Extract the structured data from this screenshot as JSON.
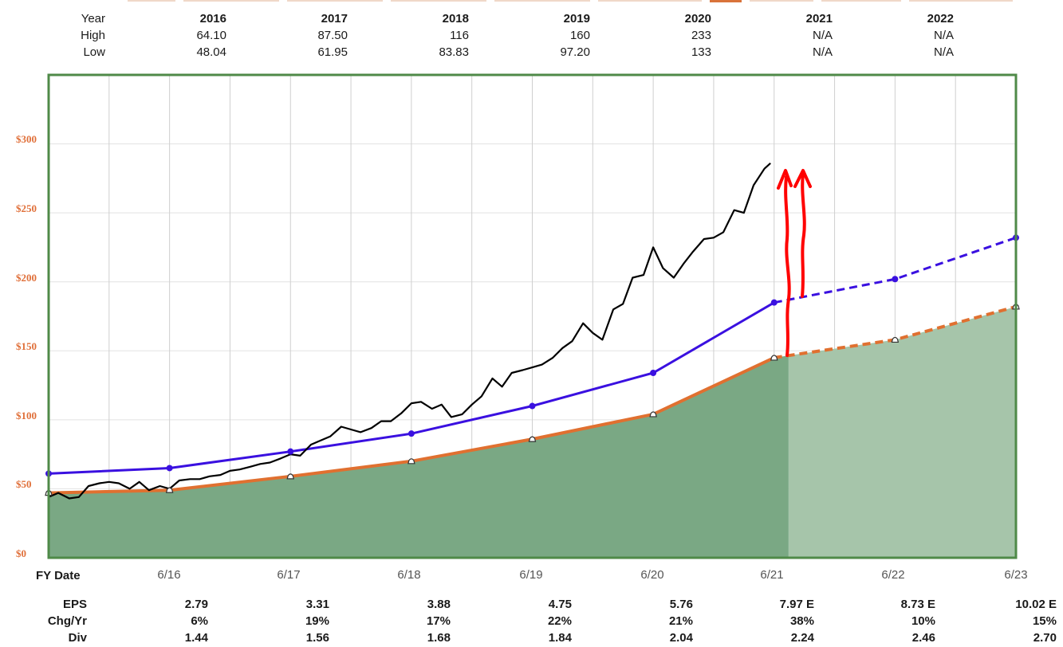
{
  "summary_table": {
    "headers": [
      "Year",
      "2016",
      "2017",
      "2018",
      "2019",
      "2020",
      "2021",
      "2022"
    ],
    "high": [
      "High",
      "64.10",
      "87.50",
      "116",
      "160",
      "233",
      "N/A",
      "N/A"
    ],
    "low": [
      "Low",
      "48.04",
      "61.95",
      "83.83",
      "97.20",
      "133",
      "N/A",
      "N/A"
    ]
  },
  "chart_data": {
    "type": "line",
    "ylim": [
      0,
      350
    ],
    "y_ticks": [
      "$0",
      "$50",
      "$100",
      "$150",
      "$200",
      "$250",
      "$300"
    ],
    "x_ticks": [
      "6/16",
      "6/17",
      "6/18",
      "6/19",
      "6/20",
      "6/21",
      "6/22",
      "6/23"
    ],
    "xlabel": "FY Date",
    "grid": true,
    "series": [
      {
        "role": "price",
        "color": "#000000",
        "points": [
          [
            2015.5,
            44
          ],
          [
            2015.58,
            47
          ],
          [
            2015.67,
            43
          ],
          [
            2015.75,
            44
          ],
          [
            2015.83,
            52
          ],
          [
            2015.92,
            54
          ],
          [
            2016.0,
            55
          ],
          [
            2016.08,
            54
          ],
          [
            2016.17,
            50
          ],
          [
            2016.25,
            55
          ],
          [
            2016.33,
            49
          ],
          [
            2016.42,
            52
          ],
          [
            2016.5,
            50
          ],
          [
            2016.58,
            56
          ],
          [
            2016.67,
            57
          ],
          [
            2016.75,
            57
          ],
          [
            2016.83,
            59
          ],
          [
            2016.92,
            60
          ],
          [
            2017.0,
            63
          ],
          [
            2017.08,
            64
          ],
          [
            2017.17,
            66
          ],
          [
            2017.25,
            68
          ],
          [
            2017.33,
            69
          ],
          [
            2017.42,
            72
          ],
          [
            2017.5,
            75
          ],
          [
            2017.58,
            74
          ],
          [
            2017.67,
            82
          ],
          [
            2017.75,
            85
          ],
          [
            2017.83,
            88
          ],
          [
            2017.92,
            95
          ],
          [
            2018.0,
            93
          ],
          [
            2018.08,
            91
          ],
          [
            2018.17,
            94
          ],
          [
            2018.25,
            99
          ],
          [
            2018.33,
            99
          ],
          [
            2018.42,
            105
          ],
          [
            2018.5,
            112
          ],
          [
            2018.58,
            113
          ],
          [
            2018.67,
            108
          ],
          [
            2018.75,
            111
          ],
          [
            2018.83,
            102
          ],
          [
            2018.92,
            104
          ],
          [
            2019.0,
            111
          ],
          [
            2019.08,
            117
          ],
          [
            2019.17,
            130
          ],
          [
            2019.25,
            124
          ],
          [
            2019.33,
            134
          ],
          [
            2019.42,
            136
          ],
          [
            2019.5,
            138
          ],
          [
            2019.58,
            140
          ],
          [
            2019.67,
            145
          ],
          [
            2019.75,
            152
          ],
          [
            2019.83,
            157
          ],
          [
            2019.92,
            170
          ],
          [
            2020.0,
            163
          ],
          [
            2020.08,
            158
          ],
          [
            2020.17,
            180
          ],
          [
            2020.25,
            184
          ],
          [
            2020.33,
            203
          ],
          [
            2020.42,
            205
          ],
          [
            2020.5,
            225
          ],
          [
            2020.58,
            210
          ],
          [
            2020.67,
            203
          ],
          [
            2020.75,
            213
          ],
          [
            2020.83,
            222
          ],
          [
            2020.92,
            231
          ],
          [
            2021.0,
            232
          ],
          [
            2021.08,
            236
          ],
          [
            2021.17,
            252
          ],
          [
            2021.25,
            250
          ],
          [
            2021.33,
            270
          ],
          [
            2021.42,
            282
          ],
          [
            2021.47,
            286
          ]
        ]
      },
      {
        "role": "normal-pe-value",
        "color": "#3a10e0",
        "points": [
          [
            2015.5,
            61
          ],
          [
            2016.5,
            65
          ],
          [
            2017.5,
            77
          ],
          [
            2018.5,
            90
          ],
          [
            2019.5,
            110
          ],
          [
            2020.5,
            134
          ],
          [
            2021.5,
            185
          ]
        ],
        "projected": [
          [
            2021.5,
            185
          ],
          [
            2022.5,
            202
          ],
          [
            2023.5,
            232
          ]
        ]
      },
      {
        "role": "earnings-justified-value",
        "color": "#e07030",
        "points": [
          [
            2015.5,
            47
          ],
          [
            2016.5,
            49
          ],
          [
            2017.5,
            59
          ],
          [
            2018.5,
            70
          ],
          [
            2019.5,
            86
          ],
          [
            2020.5,
            104
          ],
          [
            2021.5,
            145
          ]
        ],
        "projected": [
          [
            2021.5,
            145
          ],
          [
            2022.5,
            158
          ],
          [
            2023.5,
            182
          ]
        ]
      }
    ],
    "fill_color": "#7aa884",
    "fill_projected_color": "#a6c5aa",
    "annotation": {
      "type": "hand-drawn-arrows",
      "color": "#ff0000"
    }
  },
  "eps_table": {
    "rows": [
      {
        "label": "EPS",
        "values": [
          "2.79",
          "3.31",
          "3.88",
          "4.75",
          "5.76",
          "7.97 E",
          "8.73 E",
          "10.02 E"
        ]
      },
      {
        "label": "Chg/Yr",
        "values": [
          "6%",
          "19%",
          "17%",
          "22%",
          "21%",
          "38%",
          "10%",
          "15%"
        ]
      },
      {
        "label": "Div",
        "values": [
          "1.44",
          "1.56",
          "1.68",
          "1.84",
          "2.04",
          "2.24",
          "2.46",
          "2.70"
        ]
      }
    ]
  }
}
